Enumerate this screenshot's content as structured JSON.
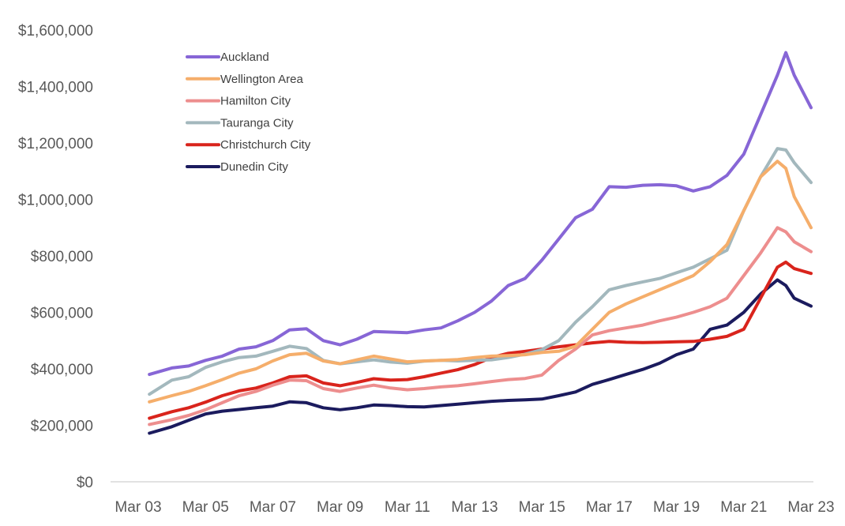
{
  "chart_data": {
    "type": "line",
    "title": "",
    "xlabel": "",
    "ylabel": "",
    "ylim": [
      0,
      1600000
    ],
    "grid": false,
    "legend_position": "top-left",
    "x_ticks": [
      "Mar 03",
      "Mar 05",
      "Mar 07",
      "Mar 09",
      "Mar 11",
      "Mar 13",
      "Mar 15",
      "Mar 17",
      "Mar 19",
      "Mar 21",
      "Mar 23"
    ],
    "y_ticks": [
      {
        "value": 0,
        "label": "$0"
      },
      {
        "value": 200000,
        "label": "$200,000"
      },
      {
        "value": 400000,
        "label": "$400,000"
      },
      {
        "value": 600000,
        "label": "$600,000"
      },
      {
        "value": 800000,
        "label": "$800,000"
      },
      {
        "value": 1000000,
        "label": "$1,000,000"
      },
      {
        "value": 1200000,
        "label": "$1,200,000"
      },
      {
        "value": 1400000,
        "label": "$1,400,000"
      },
      {
        "value": 1600000,
        "label": "$1,600,000"
      }
    ],
    "series": [
      {
        "name": "Auckland",
        "color": "#8766d6",
        "points": [
          [
            "2003-07",
            380000
          ],
          [
            "2004-03",
            403000
          ],
          [
            "2004-09",
            410000
          ],
          [
            "2005-03",
            430000
          ],
          [
            "2005-09",
            445000
          ],
          [
            "2006-03",
            470000
          ],
          [
            "2006-09",
            478000
          ],
          [
            "2007-03",
            500000
          ],
          [
            "2007-09",
            538000
          ],
          [
            "2008-03",
            542000
          ],
          [
            "2008-09",
            500000
          ],
          [
            "2009-03",
            485000
          ],
          [
            "2009-09",
            505000
          ],
          [
            "2010-03",
            532000
          ],
          [
            "2010-09",
            530000
          ],
          [
            "2011-03",
            528000
          ],
          [
            "2011-09",
            538000
          ],
          [
            "2012-03",
            545000
          ],
          [
            "2012-09",
            570000
          ],
          [
            "2013-03",
            600000
          ],
          [
            "2013-09",
            640000
          ],
          [
            "2014-03",
            695000
          ],
          [
            "2014-09",
            720000
          ],
          [
            "2015-03",
            785000
          ],
          [
            "2015-09",
            860000
          ],
          [
            "2016-03",
            935000
          ],
          [
            "2016-09",
            965000
          ],
          [
            "2017-03",
            1045000
          ],
          [
            "2017-09",
            1043000
          ],
          [
            "2018-03",
            1050000
          ],
          [
            "2018-09",
            1052000
          ],
          [
            "2019-03",
            1048000
          ],
          [
            "2019-09",
            1030000
          ],
          [
            "2020-03",
            1045000
          ],
          [
            "2020-09",
            1085000
          ],
          [
            "2021-03",
            1160000
          ],
          [
            "2021-09",
            1300000
          ],
          [
            "2022-03",
            1440000
          ],
          [
            "2022-06",
            1520000
          ],
          [
            "2022-09",
            1440000
          ],
          [
            "2023-03",
            1325000
          ]
        ]
      },
      {
        "name": "Wellington Area",
        "color": "#f5ae6b",
        "points": [
          [
            "2003-07",
            283000
          ],
          [
            "2004-03",
            305000
          ],
          [
            "2004-09",
            320000
          ],
          [
            "2005-03",
            340000
          ],
          [
            "2005-09",
            362000
          ],
          [
            "2006-03",
            385000
          ],
          [
            "2006-09",
            400000
          ],
          [
            "2007-03",
            428000
          ],
          [
            "2007-09",
            450000
          ],
          [
            "2008-03",
            455000
          ],
          [
            "2008-09",
            428000
          ],
          [
            "2009-03",
            418000
          ],
          [
            "2009-09",
            432000
          ],
          [
            "2010-03",
            445000
          ],
          [
            "2010-09",
            435000
          ],
          [
            "2011-03",
            425000
          ],
          [
            "2011-09",
            428000
          ],
          [
            "2012-03",
            430000
          ],
          [
            "2012-09",
            433000
          ],
          [
            "2013-03",
            440000
          ],
          [
            "2013-09",
            445000
          ],
          [
            "2014-03",
            447000
          ],
          [
            "2014-09",
            450000
          ],
          [
            "2015-03",
            458000
          ],
          [
            "2015-09",
            462000
          ],
          [
            "2016-03",
            480000
          ],
          [
            "2016-09",
            540000
          ],
          [
            "2017-03",
            600000
          ],
          [
            "2017-09",
            630000
          ],
          [
            "2018-03",
            655000
          ],
          [
            "2018-09",
            680000
          ],
          [
            "2019-03",
            705000
          ],
          [
            "2019-09",
            730000
          ],
          [
            "2020-03",
            780000
          ],
          [
            "2020-09",
            840000
          ],
          [
            "2021-03",
            960000
          ],
          [
            "2021-09",
            1080000
          ],
          [
            "2022-03",
            1135000
          ],
          [
            "2022-06",
            1110000
          ],
          [
            "2022-09",
            1010000
          ],
          [
            "2023-03",
            900000
          ]
        ]
      },
      {
        "name": "Hamilton City",
        "color": "#ed8e8e",
        "points": [
          [
            "2003-07",
            203000
          ],
          [
            "2004-03",
            220000
          ],
          [
            "2004-09",
            235000
          ],
          [
            "2005-03",
            255000
          ],
          [
            "2005-09",
            280000
          ],
          [
            "2006-03",
            305000
          ],
          [
            "2006-09",
            320000
          ],
          [
            "2007-03",
            342000
          ],
          [
            "2007-09",
            360000
          ],
          [
            "2008-03",
            358000
          ],
          [
            "2008-09",
            330000
          ],
          [
            "2009-03",
            320000
          ],
          [
            "2009-09",
            332000
          ],
          [
            "2010-03",
            342000
          ],
          [
            "2010-09",
            332000
          ],
          [
            "2011-03",
            326000
          ],
          [
            "2011-09",
            330000
          ],
          [
            "2012-03",
            336000
          ],
          [
            "2012-09",
            340000
          ],
          [
            "2013-03",
            347000
          ],
          [
            "2013-09",
            355000
          ],
          [
            "2014-03",
            362000
          ],
          [
            "2014-09",
            366000
          ],
          [
            "2015-03",
            378000
          ],
          [
            "2015-09",
            430000
          ],
          [
            "2016-03",
            470000
          ],
          [
            "2016-09",
            520000
          ],
          [
            "2017-03",
            535000
          ],
          [
            "2017-09",
            545000
          ],
          [
            "2018-03",
            555000
          ],
          [
            "2018-09",
            570000
          ],
          [
            "2019-03",
            583000
          ],
          [
            "2019-09",
            600000
          ],
          [
            "2020-03",
            620000
          ],
          [
            "2020-09",
            650000
          ],
          [
            "2021-03",
            730000
          ],
          [
            "2021-09",
            810000
          ],
          [
            "2022-03",
            900000
          ],
          [
            "2022-06",
            885000
          ],
          [
            "2022-09",
            850000
          ],
          [
            "2023-03",
            815000
          ]
        ]
      },
      {
        "name": "Tauranga City",
        "color": "#a3b8bd",
        "points": [
          [
            "2003-07",
            310000
          ],
          [
            "2004-03",
            360000
          ],
          [
            "2004-09",
            372000
          ],
          [
            "2005-03",
            405000
          ],
          [
            "2005-09",
            425000
          ],
          [
            "2006-03",
            440000
          ],
          [
            "2006-09",
            445000
          ],
          [
            "2007-03",
            462000
          ],
          [
            "2007-09",
            480000
          ],
          [
            "2008-03",
            472000
          ],
          [
            "2008-09",
            430000
          ],
          [
            "2009-03",
            418000
          ],
          [
            "2009-09",
            425000
          ],
          [
            "2010-03",
            432000
          ],
          [
            "2010-09",
            424000
          ],
          [
            "2011-03",
            420000
          ],
          [
            "2011-09",
            427000
          ],
          [
            "2012-03",
            430000
          ],
          [
            "2012-09",
            428000
          ],
          [
            "2013-03",
            430000
          ],
          [
            "2013-09",
            432000
          ],
          [
            "2014-03",
            440000
          ],
          [
            "2014-09",
            452000
          ],
          [
            "2015-03",
            468000
          ],
          [
            "2015-09",
            500000
          ],
          [
            "2016-03",
            565000
          ],
          [
            "2016-09",
            620000
          ],
          [
            "2017-03",
            680000
          ],
          [
            "2017-09",
            695000
          ],
          [
            "2018-03",
            708000
          ],
          [
            "2018-09",
            720000
          ],
          [
            "2019-03",
            740000
          ],
          [
            "2019-09",
            760000
          ],
          [
            "2020-03",
            790000
          ],
          [
            "2020-09",
            820000
          ],
          [
            "2021-03",
            960000
          ],
          [
            "2021-09",
            1080000
          ],
          [
            "2022-03",
            1180000
          ],
          [
            "2022-06",
            1175000
          ],
          [
            "2022-09",
            1130000
          ],
          [
            "2023-03",
            1060000
          ]
        ]
      },
      {
        "name": "Christchurch City",
        "color": "#d9241c",
        "points": [
          [
            "2003-07",
            225000
          ],
          [
            "2004-03",
            248000
          ],
          [
            "2004-09",
            262000
          ],
          [
            "2005-03",
            282000
          ],
          [
            "2005-09",
            305000
          ],
          [
            "2006-03",
            322000
          ],
          [
            "2006-09",
            332000
          ],
          [
            "2007-03",
            350000
          ],
          [
            "2007-09",
            372000
          ],
          [
            "2008-03",
            375000
          ],
          [
            "2008-09",
            350000
          ],
          [
            "2009-03",
            340000
          ],
          [
            "2009-09",
            352000
          ],
          [
            "2010-03",
            365000
          ],
          [
            "2010-09",
            360000
          ],
          [
            "2011-03",
            362000
          ],
          [
            "2011-09",
            372000
          ],
          [
            "2012-03",
            385000
          ],
          [
            "2012-09",
            397000
          ],
          [
            "2013-03",
            415000
          ],
          [
            "2013-09",
            440000
          ],
          [
            "2014-03",
            455000
          ],
          [
            "2014-09",
            462000
          ],
          [
            "2015-03",
            470000
          ],
          [
            "2015-09",
            478000
          ],
          [
            "2016-03",
            485000
          ],
          [
            "2016-09",
            492000
          ],
          [
            "2017-03",
            497000
          ],
          [
            "2017-09",
            494000
          ],
          [
            "2018-03",
            493000
          ],
          [
            "2018-09",
            494000
          ],
          [
            "2019-03",
            496000
          ],
          [
            "2019-09",
            497000
          ],
          [
            "2020-03",
            505000
          ],
          [
            "2020-09",
            515000
          ],
          [
            "2021-03",
            540000
          ],
          [
            "2021-09",
            650000
          ],
          [
            "2022-03",
            760000
          ],
          [
            "2022-06",
            778000
          ],
          [
            "2022-09",
            755000
          ],
          [
            "2023-03",
            738000
          ]
        ]
      },
      {
        "name": "Dunedin City",
        "color": "#1b1b5e",
        "points": [
          [
            "2003-07",
            172000
          ],
          [
            "2004-03",
            195000
          ],
          [
            "2004-09",
            218000
          ],
          [
            "2005-03",
            240000
          ],
          [
            "2005-09",
            250000
          ],
          [
            "2006-03",
            256000
          ],
          [
            "2006-09",
            262000
          ],
          [
            "2007-03",
            268000
          ],
          [
            "2007-09",
            283000
          ],
          [
            "2008-03",
            280000
          ],
          [
            "2008-09",
            262000
          ],
          [
            "2009-03",
            255000
          ],
          [
            "2009-09",
            262000
          ],
          [
            "2010-03",
            272000
          ],
          [
            "2010-09",
            270000
          ],
          [
            "2011-03",
            266000
          ],
          [
            "2011-09",
            265000
          ],
          [
            "2012-03",
            270000
          ],
          [
            "2012-09",
            275000
          ],
          [
            "2013-03",
            280000
          ],
          [
            "2013-09",
            285000
          ],
          [
            "2014-03",
            288000
          ],
          [
            "2014-09",
            290000
          ],
          [
            "2015-03",
            293000
          ],
          [
            "2015-09",
            305000
          ],
          [
            "2016-03",
            318000
          ],
          [
            "2016-09",
            345000
          ],
          [
            "2017-03",
            362000
          ],
          [
            "2017-09",
            380000
          ],
          [
            "2018-03",
            398000
          ],
          [
            "2018-09",
            420000
          ],
          [
            "2019-03",
            450000
          ],
          [
            "2019-09",
            470000
          ],
          [
            "2020-03",
            540000
          ],
          [
            "2020-09",
            555000
          ],
          [
            "2021-03",
            600000
          ],
          [
            "2021-09",
            665000
          ],
          [
            "2022-03",
            715000
          ],
          [
            "2022-06",
            695000
          ],
          [
            "2022-09",
            650000
          ],
          [
            "2023-03",
            622000
          ]
        ]
      }
    ]
  }
}
